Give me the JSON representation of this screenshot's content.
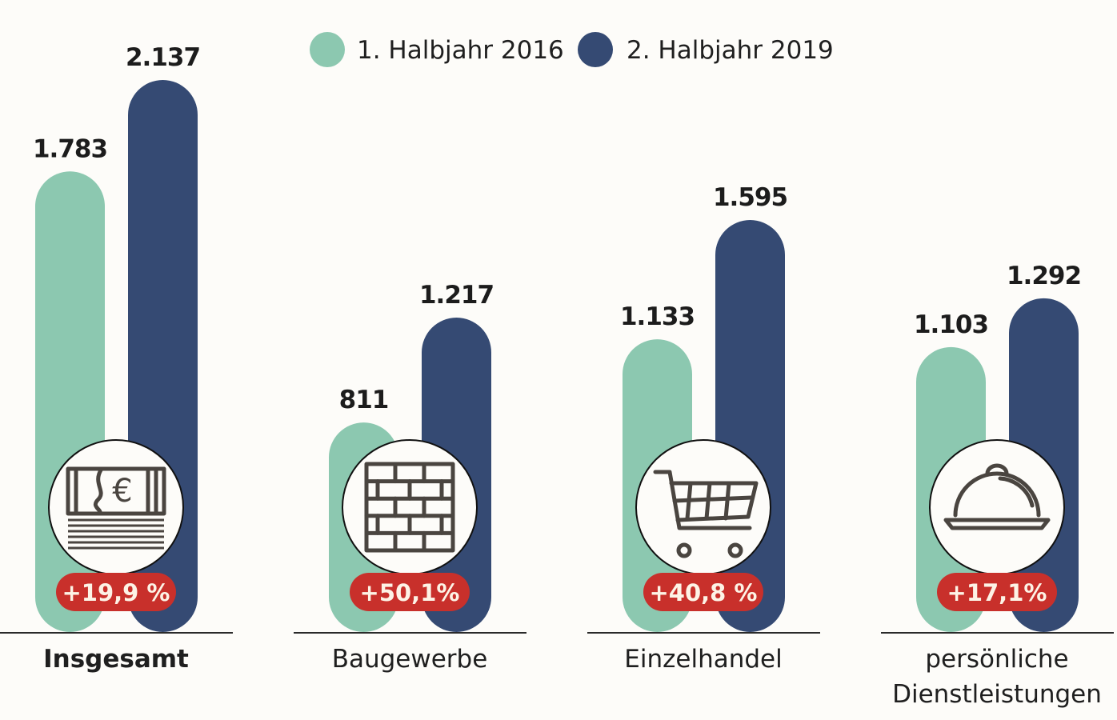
{
  "chart_data": {
    "type": "bar",
    "title": "",
    "xlabel": "",
    "ylabel": "",
    "ylim": [
      0,
      2137
    ],
    "grid": false,
    "legend_position": "top-center",
    "categories": [
      "Insgesamt",
      "Baugewerbe",
      "Einzelhandel",
      "persönliche Dienstleistungen"
    ],
    "category_lines": [
      [
        "Insgesamt"
      ],
      [
        "Baugewerbe"
      ],
      [
        "Einzelhandel"
      ],
      [
        "persönliche",
        "Dienstleistungen"
      ]
    ],
    "category_bold": [
      true,
      false,
      false,
      false
    ],
    "series": [
      {
        "name": "1. Halbjahr 2016",
        "color": "#8cc8b0",
        "values": [
          1783,
          811,
          1133,
          1103
        ],
        "labels": [
          "1.783",
          "811",
          "1.133",
          "1.103"
        ]
      },
      {
        "name": "2. Halbjahr 2019",
        "color": "#354a73",
        "values": [
          2137,
          1217,
          1595,
          1292
        ],
        "labels": [
          "2.137",
          "1.217",
          "1.595",
          "1.292"
        ]
      }
    ],
    "annotations": [
      {
        "category": "Insgesamt",
        "change": "+19,9 %",
        "icon": "euro-banknotes-icon"
      },
      {
        "category": "Baugewerbe",
        "change": "+50,1%",
        "icon": "brick-wall-icon"
      },
      {
        "category": "Einzelhandel",
        "change": "+40,8 %",
        "icon": "shopping-cart-icon"
      },
      {
        "category": "persönliche Dienstleistungen",
        "change": "+17,1%",
        "icon": "cloche-icon"
      }
    ],
    "badge_color": "#c8302b"
  }
}
